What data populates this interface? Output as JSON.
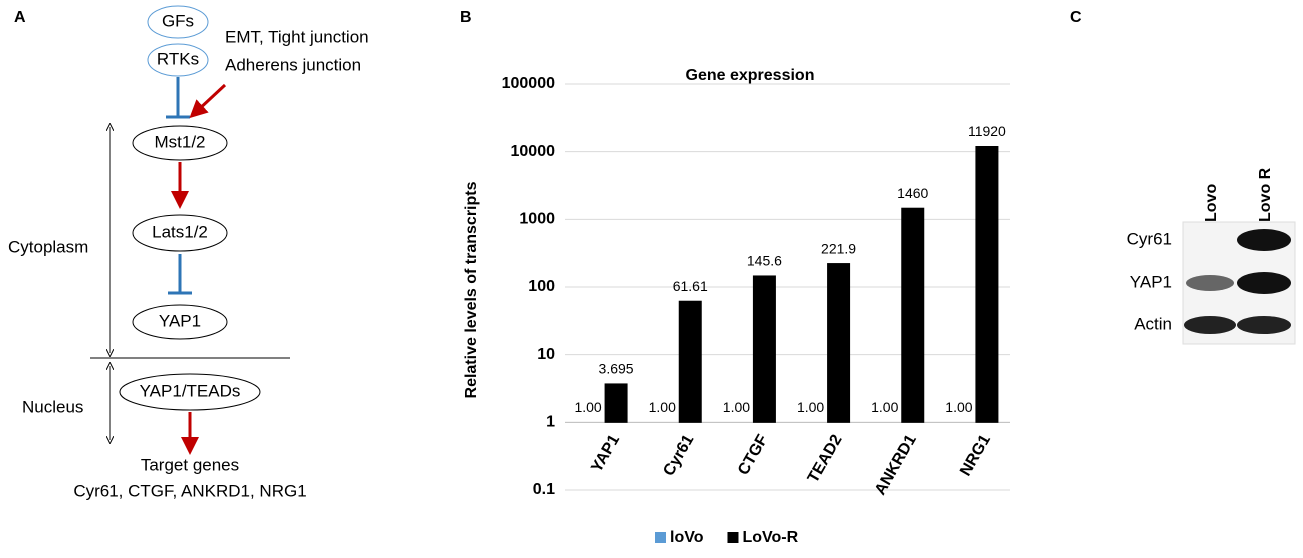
{
  "panel_a": {
    "label": "A",
    "nodes": [
      "GFs",
      "RTKs",
      "Mst1/2",
      "Lats1/2",
      "YAP1",
      "YAP1/TEADs"
    ],
    "signals": [
      "EMT, Tight junction",
      "Adherens junction"
    ],
    "compartments": [
      "Cytoplasm",
      "Nucleus"
    ],
    "targets_title": "Target genes",
    "targets": "Cyr61, CTGF, ANKRD1, NRG1"
  },
  "chart_data": {
    "type": "bar",
    "panel_label": "B",
    "title": "Gene expression",
    "y_label": "Relative levels of transcripts",
    "categories": [
      "YAP1",
      "Cyr61",
      "CTGF",
      "TEAD2",
      "ANKRD1",
      "NRG1"
    ],
    "series": [
      {
        "name": "loVo",
        "color": "#5b9bd5",
        "values": [
          1,
          1,
          1,
          1,
          1,
          1
        ],
        "value_labels": [
          "1.00",
          "1.00",
          "1.00",
          "1.00",
          "1.00",
          "1.00"
        ]
      },
      {
        "name": "LoVo-R",
        "color": "#000000",
        "values": [
          3.695,
          61.61,
          145.6,
          221.9,
          1460,
          11920
        ]
      }
    ],
    "ylim": [
      0.1,
      100000
    ],
    "yticks": [
      0.1,
      1,
      10,
      100,
      1000,
      10000,
      100000
    ],
    "log_scale": true,
    "grid": true,
    "legend": "bottom"
  },
  "panel_c": {
    "label": "C",
    "lanes": [
      "Lovo",
      "Lovo R"
    ],
    "proteins": [
      "Cyr61",
      "YAP1",
      "Actin"
    ]
  }
}
